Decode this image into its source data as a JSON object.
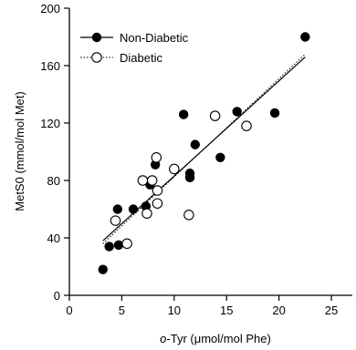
{
  "chart_data": {
    "type": "scatter",
    "title": "",
    "xlabel": "o-Tyr (μmol/mol Phe)",
    "xlabel_italic": "o",
    "xlabel_rest": "-Tyr (μmol/mol Phe)",
    "ylabel": "MetS0 (mmol/mol Met)",
    "xlim": [
      0,
      27
    ],
    "ylim": [
      0,
      200
    ],
    "xticks": [
      0,
      5,
      10,
      15,
      20,
      25
    ],
    "yticks": [
      0,
      40,
      80,
      120,
      160,
      200
    ],
    "grid": false,
    "legend": "top-left",
    "series": [
      {
        "name": "Non-Diabetic",
        "marker": "filled-circle",
        "line_style": "solid",
        "color": "#000000",
        "points": [
          {
            "x": 3.2,
            "y": 18
          },
          {
            "x": 3.8,
            "y": 34
          },
          {
            "x": 4.6,
            "y": 60
          },
          {
            "x": 4.7,
            "y": 35
          },
          {
            "x": 6.1,
            "y": 60
          },
          {
            "x": 7.3,
            "y": 62
          },
          {
            "x": 7.7,
            "y": 77
          },
          {
            "x": 8.2,
            "y": 91
          },
          {
            "x": 10.9,
            "y": 126
          },
          {
            "x": 11.5,
            "y": 85
          },
          {
            "x": 11.5,
            "y": 82
          },
          {
            "x": 12.0,
            "y": 105
          },
          {
            "x": 14.4,
            "y": 96
          },
          {
            "x": 16.0,
            "y": 128
          },
          {
            "x": 19.6,
            "y": 127
          },
          {
            "x": 22.5,
            "y": 180
          }
        ],
        "regression": {
          "x": [
            3.2,
            22.5
          ],
          "y": [
            38,
            166
          ]
        }
      },
      {
        "name": "Diabetic",
        "marker": "open-circle",
        "line_style": "dotted",
        "color": "#000000",
        "points": [
          {
            "x": 4.4,
            "y": 52
          },
          {
            "x": 5.5,
            "y": 36
          },
          {
            "x": 7.0,
            "y": 80
          },
          {
            "x": 7.4,
            "y": 57
          },
          {
            "x": 7.9,
            "y": 80
          },
          {
            "x": 8.3,
            "y": 96
          },
          {
            "x": 8.4,
            "y": 73
          },
          {
            "x": 8.4,
            "y": 64
          },
          {
            "x": 10.0,
            "y": 88
          },
          {
            "x": 11.4,
            "y": 56
          },
          {
            "x": 13.9,
            "y": 125
          },
          {
            "x": 16.9,
            "y": 118
          }
        ],
        "regression": {
          "x": [
            3.2,
            22.5
          ],
          "y": [
            36,
            168
          ]
        }
      }
    ]
  }
}
